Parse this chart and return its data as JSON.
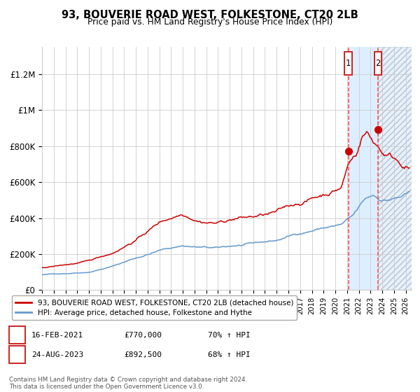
{
  "title": "93, BOUVERIE ROAD WEST, FOLKESTONE, CT20 2LB",
  "subtitle": "Price paid vs. HM Land Registry's House Price Index (HPI)",
  "hpi_label": "HPI: Average price, detached house, Folkestone and Hythe",
  "price_label": "93, BOUVERIE ROAD WEST, FOLKESTONE, CT20 2LB (detached house)",
  "footer": "Contains HM Land Registry data © Crown copyright and database right 2024.\nThis data is licensed under the Open Government Licence v3.0.",
  "transaction1": {
    "date": "16-FEB-2021",
    "price": "£770,000",
    "hpi_rel": "70% ↑ HPI",
    "year": 2021.12
  },
  "transaction2": {
    "date": "24-AUG-2023",
    "price": "£892,500",
    "hpi_rel": "68% ↑ HPI",
    "year": 2023.64
  },
  "ylim": [
    0,
    1350000
  ],
  "xlim_start": 1995.0,
  "xlim_end": 2026.5,
  "hpi_color": "#6699cc",
  "price_color": "#cc0000",
  "dot_color": "#cc0000",
  "vline_color": "#ff4444",
  "shade_color": "#ddeeff",
  "annotation_box_color": "#cc2222",
  "grid_color": "#cccccc",
  "bg_color": "#ffffff",
  "yticks": [
    0,
    200000,
    400000,
    600000,
    800000,
    1000000,
    1200000
  ],
  "ytick_labels": [
    "£0",
    "£200K",
    "£400K",
    "£600K",
    "£800K",
    "£1M",
    "£1.2M"
  ],
  "hpi_anchors": [
    [
      1995.0,
      85000
    ],
    [
      1997.0,
      93000
    ],
    [
      1999.0,
      105000
    ],
    [
      2001.0,
      140000
    ],
    [
      2003.0,
      190000
    ],
    [
      2005.0,
      235000
    ],
    [
      2007.0,
      265000
    ],
    [
      2008.5,
      255000
    ],
    [
      2010.0,
      245000
    ],
    [
      2011.5,
      258000
    ],
    [
      2013.0,
      262000
    ],
    [
      2015.0,
      278000
    ],
    [
      2017.0,
      320000
    ],
    [
      2019.0,
      355000
    ],
    [
      2020.5,
      368000
    ],
    [
      2021.5,
      408000
    ],
    [
      2022.5,
      490000
    ],
    [
      2023.2,
      515000
    ],
    [
      2024.0,
      492000
    ],
    [
      2025.0,
      502000
    ],
    [
      2026.3,
      518000
    ]
  ],
  "price_anchors": [
    [
      1995.0,
      125000
    ],
    [
      1997.0,
      142000
    ],
    [
      1999.0,
      160000
    ],
    [
      2001.0,
      205000
    ],
    [
      2003.0,
      285000
    ],
    [
      2005.0,
      385000
    ],
    [
      2007.0,
      445000
    ],
    [
      2008.5,
      420000
    ],
    [
      2010.0,
      415000
    ],
    [
      2011.5,
      445000
    ],
    [
      2013.0,
      452000
    ],
    [
      2015.0,
      468000
    ],
    [
      2017.0,
      520000
    ],
    [
      2019.0,
      575000
    ],
    [
      2020.5,
      625000
    ],
    [
      2021.12,
      770000
    ],
    [
      2021.8,
      835000
    ],
    [
      2022.3,
      950000
    ],
    [
      2022.7,
      975000
    ],
    [
      2023.0,
      935000
    ],
    [
      2023.64,
      892500
    ],
    [
      2024.0,
      858000
    ],
    [
      2024.8,
      835000
    ],
    [
      2025.5,
      808000
    ],
    [
      2026.3,
      782000
    ]
  ]
}
